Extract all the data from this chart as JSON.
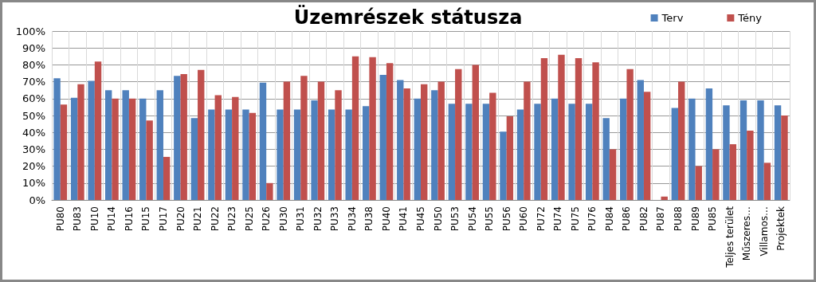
{
  "chart_data": {
    "type": "bar",
    "title": "Üzemrészek státusza",
    "categories": [
      "PU80",
      "PU83",
      "PU10",
      "PU14",
      "PU16",
      "PU15",
      "PU17",
      "PU20",
      "PU21",
      "PU22",
      "PU23",
      "PU25",
      "PU26",
      "PU30",
      "PU31",
      "PU32",
      "PU33",
      "PU34",
      "PU38",
      "PU40",
      "PU41",
      "PU45",
      "PU50",
      "PU53",
      "PU54",
      "PU55",
      "PU56",
      "PU60",
      "PU72",
      "PU74",
      "PU75",
      "PU76",
      "PU84",
      "PU86",
      "PU82",
      "PU87",
      "PU88",
      "PU89",
      "PU85",
      "Teljes terület",
      "Műszeres…",
      "Villamos…",
      "Projektek"
    ],
    "series": [
      {
        "name": "Terv",
        "color": "#4f81bd",
        "values": [
          72,
          60.5,
          70.5,
          65,
          65,
          60,
          65,
          73.5,
          48.5,
          53.5,
          53.5,
          53.5,
          69.5,
          53.5,
          53.5,
          59,
          53.5,
          53.5,
          55.5,
          74,
          71,
          60,
          65,
          57,
          57,
          57,
          40.5,
          53.5,
          57,
          60,
          57,
          57,
          48.5,
          60,
          71,
          null,
          54.5,
          60,
          66,
          56,
          59,
          59,
          56
        ]
      },
      {
        "name": "Tény",
        "color": "#c0504d",
        "values": [
          56.5,
          68.5,
          82,
          60,
          60,
          47,
          25.5,
          74.5,
          77,
          62,
          61,
          51.5,
          10,
          70,
          73.5,
          70,
          65,
          85,
          84.5,
          81,
          66,
          68.5,
          70,
          77.5,
          80,
          63.5,
          49.5,
          70,
          84,
          86,
          84,
          81.5,
          30,
          77.5,
          64,
          2,
          70,
          20,
          30,
          33,
          41,
          22,
          50
        ]
      }
    ],
    "ylim": [
      0,
      100
    ],
    "yticks": [
      {
        "value": 0,
        "label": "0%"
      },
      {
        "value": 10,
        "label": "10%"
      },
      {
        "value": 20,
        "label": "20%"
      },
      {
        "value": 30,
        "label": "30%"
      },
      {
        "value": 40,
        "label": "40%"
      },
      {
        "value": 50,
        "label": "50%"
      },
      {
        "value": 60,
        "label": "60%"
      },
      {
        "value": 70,
        "label": "70%"
      },
      {
        "value": 80,
        "label": "80%"
      },
      {
        "value": 90,
        "label": "90%"
      },
      {
        "value": 100,
        "label": "100%"
      }
    ],
    "grid": true,
    "legend": "top right"
  }
}
